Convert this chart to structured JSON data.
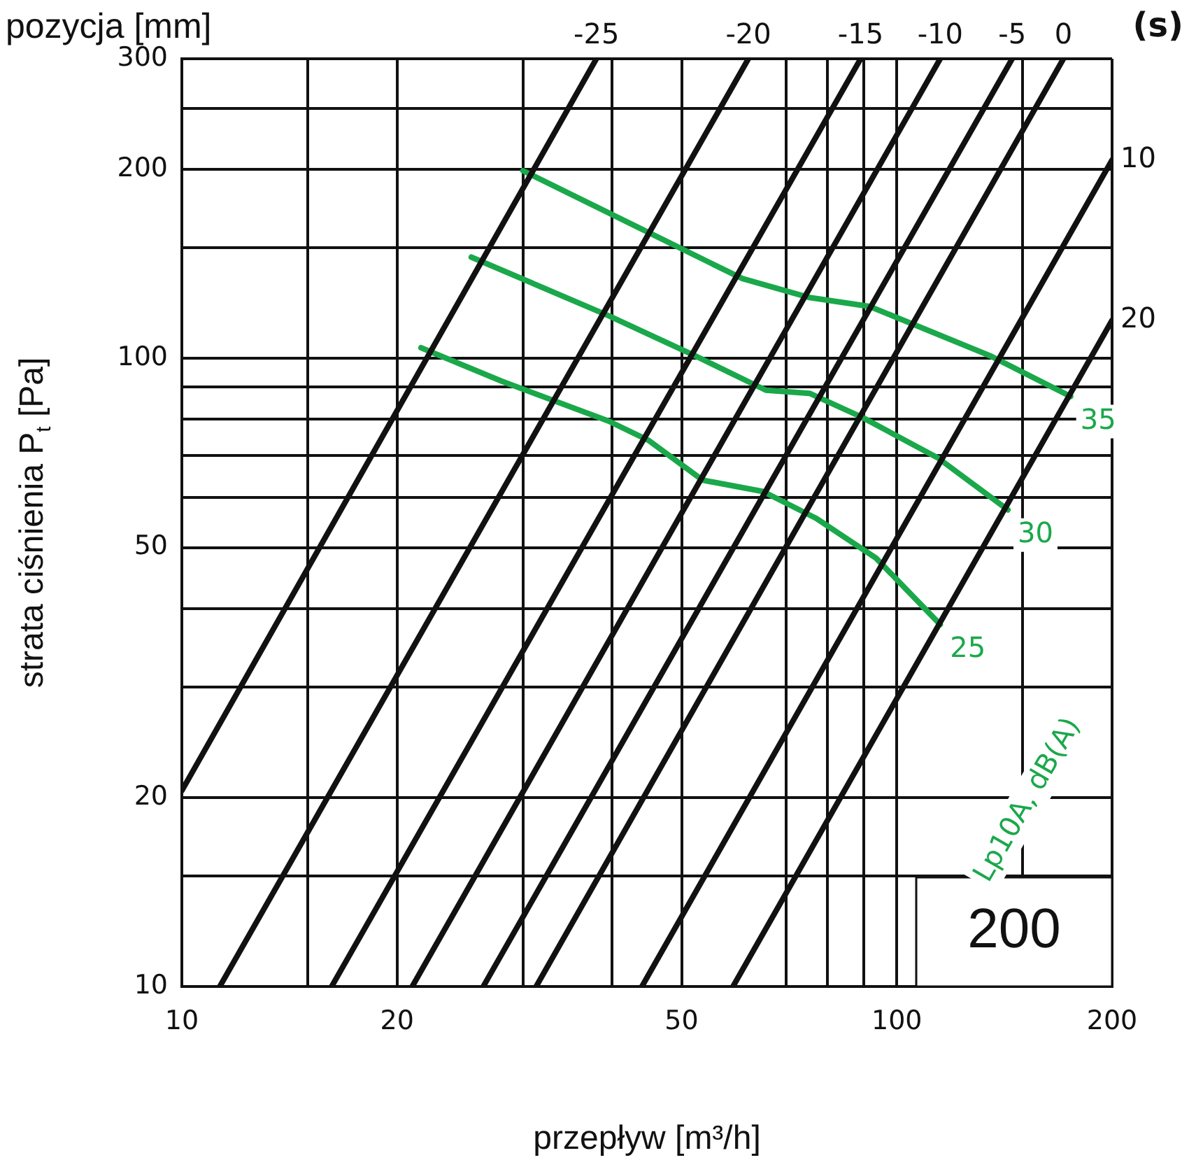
{
  "chart_data": {
    "type": "line",
    "xlabel": "przepływ [m³/h]",
    "ylabel": "strata ciśnienia P$_{t}$ [Pa]",
    "log": "xy",
    "xlim": [
      10,
      200
    ],
    "ylim": [
      10,
      300
    ],
    "xticks": [
      10,
      {
        "value": 15,
        "label": null
      },
      20,
      {
        "value": 30,
        "label": null
      },
      {
        "value": 40,
        "label": null
      },
      50,
      {
        "value": 70,
        "label": null
      },
      {
        "value": 80,
        "label": null
      },
      {
        "value": 90,
        "label": null
      },
      100,
      {
        "value": 150,
        "label": null
      },
      200
    ],
    "yticks": [
      10,
      {
        "value": 15,
        "label": null
      },
      20,
      {
        "value": 30,
        "label": null
      },
      {
        "value": 40,
        "label": null
      },
      50,
      {
        "value": 60,
        "label": null
      },
      {
        "value": 70,
        "label": null
      },
      {
        "value": 80,
        "label": null
      },
      {
        "value": 90,
        "label": null
      },
      100,
      {
        "value": 150,
        "label": null
      },
      200,
      {
        "value": 250,
        "label": null
      },
      300
    ],
    "grid": true,
    "legend": false,
    "marker": "none",
    "line_style": "solid",
    "series": [
      {
        "name": "-25",
        "color": "#111111",
        "x": [
          10,
          38
        ],
        "values": [
          20.5,
          300
        ]
      },
      {
        "name": "-20",
        "color": "#111111",
        "x": [
          11.3,
          62
        ],
        "values": [
          10,
          300
        ]
      },
      {
        "name": "-15",
        "color": "#111111",
        "x": [
          16.2,
          89
        ],
        "values": [
          10,
          300
        ]
      },
      {
        "name": "-10",
        "color": "#111111",
        "x": [
          21,
          115
        ],
        "values": [
          10,
          300
        ]
      },
      {
        "name": "-5",
        "color": "#111111",
        "x": [
          26.4,
          145
        ],
        "values": [
          10,
          300
        ]
      },
      {
        "name": "0",
        "color": "#111111",
        "x": [
          31.3,
          171
        ],
        "values": [
          10,
          300
        ]
      },
      {
        "name": "10",
        "color": "#111111",
        "x": [
          44,
          200
        ],
        "values": [
          10,
          207
        ]
      },
      {
        "name": "20",
        "color": "#111111",
        "x": [
          59,
          200
        ],
        "values": [
          10,
          115
        ]
      },
      {
        "name": "35",
        "color": "#1aa84b",
        "x": [
          30,
          45.8,
          60.8,
          75.5,
          91.6,
          135,
          175
        ],
        "values": [
          199,
          157,
          134,
          125,
          121,
          101,
          87
        ]
      },
      {
        "name": "30",
        "color": "#1aa84b",
        "x": [
          25.4,
          39.5,
          52.2,
          65.6,
          75.5,
          89.6,
          114,
          143
        ],
        "values": [
          145,
          117,
          101,
          89,
          88,
          80.5,
          69.5,
          57.4
        ]
      },
      {
        "name": "25",
        "color": "#1aa84b",
        "x": [
          21.6,
          28,
          39.5,
          45,
          53.5,
          65,
          77,
          93.5,
          115
        ],
        "values": [
          104,
          92,
          79.5,
          74,
          64,
          61.4,
          55.7,
          48.1,
          37.7
        ]
      }
    ],
    "annotations": [
      "pozycja [mm]",
      "(s)",
      "Lp10A, dB(A)",
      "200"
    ]
  }
}
